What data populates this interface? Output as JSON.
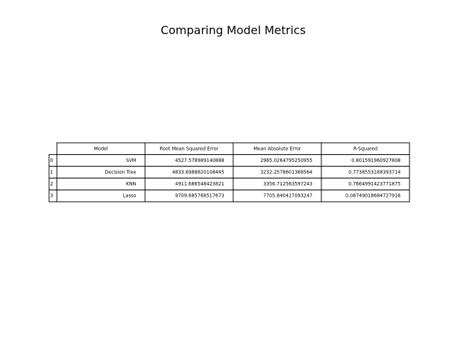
{
  "chart_data": {
    "type": "table",
    "title": "Comparing Model Metrics",
    "columns": [
      "Model",
      "Root Mean Squared Error",
      "Mean Absolute Error",
      "R-Squared"
    ],
    "row_index": [
      "0",
      "1",
      "2",
      "3"
    ],
    "rows": [
      [
        "SVM",
        "4527.578989140888",
        "2965.0264795250955",
        "0.801591960927808"
      ],
      [
        "Decision Tree",
        "4833.6988820108445",
        "3232.2578601368564",
        "0.7738553188393714"
      ],
      [
        "KNN",
        "4911.686548423821",
        "3356.712563597243",
        "0.7664991423771875"
      ],
      [
        "Lasso",
        "9709.685768517673",
        "7705.840417093247",
        "0.08749018684727916"
      ]
    ]
  }
}
